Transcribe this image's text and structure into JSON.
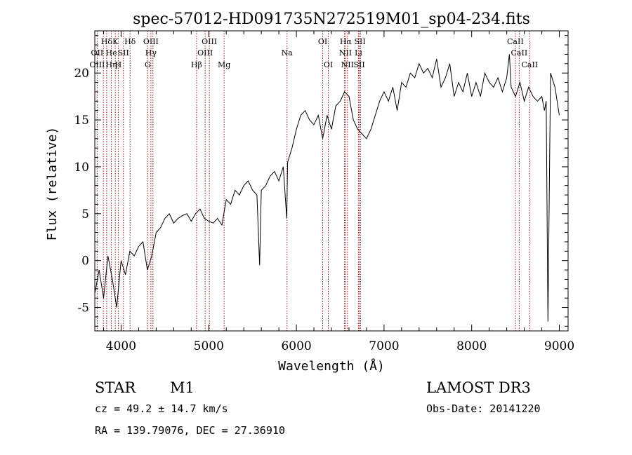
{
  "chart_data": {
    "type": "line",
    "title": "spec-57012-HD091735N272519M01_sp04-234.fits",
    "xlabel": "Wavelength (Å)",
    "ylabel": "Flux (relative)",
    "xlim": [
      3700,
      9100
    ],
    "ylim": [
      -7.5,
      24.5
    ],
    "xticks": [
      4000,
      5000,
      6000,
      7000,
      8000,
      9000
    ],
    "yticks": [
      -5,
      0,
      5,
      10,
      15,
      20
    ],
    "grid": false,
    "series": [
      {
        "x": [
          3700,
          3750,
          3800,
          3850,
          3900,
          3950,
          4000,
          4050,
          4100,
          4150,
          4200,
          4250,
          4300,
          4350,
          4400,
          4450,
          4500,
          4550,
          4600,
          4650,
          4700,
          4750,
          4800,
          4850,
          4900,
          4950,
          5000,
          5050,
          5100,
          5150,
          5200,
          5250,
          5300,
          5350,
          5400,
          5450,
          5500,
          5550,
          5580,
          5600,
          5650,
          5700,
          5750,
          5800,
          5850,
          5890,
          5900,
          5950,
          6000,
          6050,
          6100,
          6150,
          6200,
          6250,
          6300,
          6350,
          6400,
          6450,
          6500,
          6550,
          6600,
          6650,
          6700,
          6750,
          6800,
          6850,
          6900,
          6950,
          7000,
          7050,
          7100,
          7150,
          7200,
          7250,
          7300,
          7350,
          7400,
          7450,
          7500,
          7550,
          7600,
          7650,
          7700,
          7750,
          7800,
          7850,
          7900,
          7950,
          8000,
          8050,
          8100,
          8150,
          8200,
          8250,
          8300,
          8350,
          8400,
          8430,
          8450,
          8500,
          8550,
          8600,
          8650,
          8700,
          8750,
          8800,
          8830,
          8850,
          8870,
          8900,
          8950,
          9000
        ],
        "y": [
          -3.5,
          -1.0,
          -4.0,
          0.5,
          -2.0,
          -5.0,
          0.0,
          -1.5,
          1.0,
          0.5,
          1.5,
          2.0,
          -1.0,
          0.5,
          3.0,
          3.5,
          4.5,
          5.0,
          4.0,
          4.5,
          4.8,
          5.0,
          4.2,
          5.0,
          5.5,
          4.5,
          4.2,
          4.0,
          4.5,
          3.8,
          6.5,
          6.0,
          7.5,
          7.0,
          8.0,
          8.5,
          7.5,
          7.0,
          -0.5,
          7.5,
          8.0,
          9.0,
          9.5,
          8.5,
          10.0,
          4.5,
          10.5,
          12.0,
          14.0,
          15.5,
          16.0,
          15.0,
          14.5,
          15.5,
          13.0,
          15.5,
          14.0,
          16.5,
          17.0,
          18.0,
          17.5,
          15.0,
          14.0,
          13.5,
          13.0,
          14.0,
          15.5,
          17.0,
          18.0,
          17.0,
          18.5,
          16.0,
          19.0,
          18.5,
          20.0,
          19.5,
          21.0,
          20.0,
          20.5,
          19.5,
          21.5,
          18.5,
          19.5,
          21.0,
          17.5,
          19.0,
          18.0,
          20.0,
          17.5,
          19.0,
          17.5,
          20.0,
          19.0,
          18.5,
          19.5,
          18.0,
          19.5,
          22.0,
          18.5,
          17.5,
          19.0,
          17.0,
          18.5,
          17.5,
          17.0,
          17.5,
          16.0,
          17.0,
          -6.5,
          20.0,
          18.5,
          15.5
        ]
      }
    ],
    "line_labels": [
      {
        "x": 3835,
        "text": "Hδ",
        "row": 1
      },
      {
        "x": 3934,
        "text": "K",
        "row": 1
      },
      {
        "x": 4102,
        "text": "Hδ",
        "row": 1
      },
      {
        "x": 4340,
        "text": "OIII",
        "row": 1
      },
      {
        "x": 5007,
        "text": "OIII",
        "row": 1
      },
      {
        "x": 6300,
        "text": "OI",
        "row": 1
      },
      {
        "x": 6563,
        "text": "Hα",
        "row": 1
      },
      {
        "x": 6725,
        "text": "SII",
        "row": 1
      },
      {
        "x": 8498,
        "text": "CaII",
        "row": 1
      },
      {
        "x": 3727,
        "text": "OII",
        "row": 2
      },
      {
        "x": 3889,
        "text": "He",
        "row": 2
      },
      {
        "x": 4026,
        "text": "SII",
        "row": 2
      },
      {
        "x": 4340,
        "text": "Hγ",
        "row": 2
      },
      {
        "x": 4959,
        "text": "OIII",
        "row": 2
      },
      {
        "x": 5893,
        "text": "Na",
        "row": 2
      },
      {
        "x": 6560,
        "text": "NII",
        "row": 2
      },
      {
        "x": 6708,
        "text": "Li",
        "row": 2
      },
      {
        "x": 8542,
        "text": "CaII",
        "row": 2
      },
      {
        "x": 3727,
        "text": "OIII",
        "row": 3
      },
      {
        "x": 3889,
        "text": "Hη",
        "row": 3
      },
      {
        "x": 3968,
        "text": "H",
        "row": 3
      },
      {
        "x": 4304,
        "text": "G",
        "row": 3
      },
      {
        "x": 4861,
        "text": "Hβ",
        "row": 3
      },
      {
        "x": 5175,
        "text": "Mg",
        "row": 3
      },
      {
        "x": 6364,
        "text": "OI",
        "row": 3
      },
      {
        "x": 6583,
        "text": "NII",
        "row": 3
      },
      {
        "x": 6717,
        "text": "SII",
        "row": 3
      },
      {
        "x": 8662,
        "text": "CaII",
        "row": 3
      }
    ],
    "line_markers_x": [
      3727,
      3798,
      3835,
      3889,
      3934,
      3968,
      4026,
      4102,
      4304,
      4340,
      4363,
      4861,
      4959,
      5007,
      5175,
      5893,
      6300,
      6364,
      6548,
      6563,
      6583,
      6708,
      6717,
      6731,
      8498,
      8542,
      8662
    ]
  },
  "info": {
    "object_type": "STAR",
    "subclass": "M1",
    "survey": "LAMOST DR3",
    "cz": "cz = 49.2 ± 14.7 km/s",
    "obs_date": "Obs-Date: 20141220",
    "coords": "RA = 139.79076, DEC =  27.36910"
  },
  "colors": {
    "axes": "#000000",
    "spectrum": "#000000",
    "line_markers": "#a01010",
    "background": "#ffffff"
  }
}
